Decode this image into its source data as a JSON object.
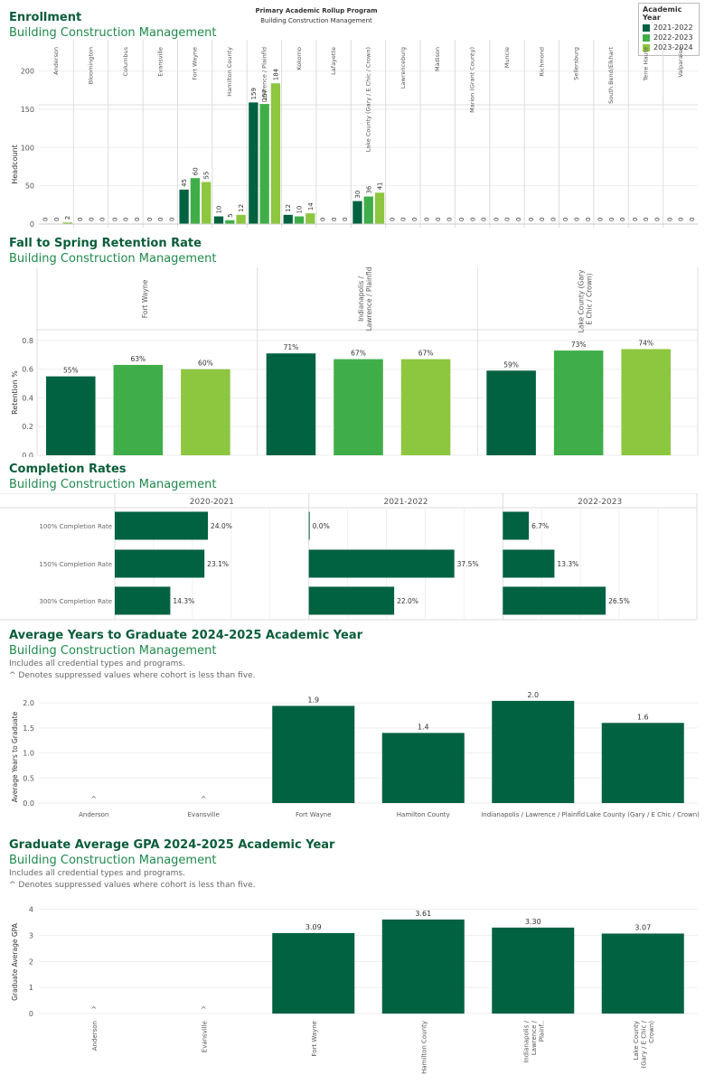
{
  "header": {
    "title": "Primary Academic Rollup Program",
    "subtitle": "Building Construction Management"
  },
  "legend": {
    "title": "Academic Year",
    "items": [
      {
        "label": "2021-2022",
        "color": "#006241"
      },
      {
        "label": "2022-2023",
        "color": "#3fae49"
      },
      {
        "label": "2023-2024",
        "color": "#8dc63f"
      }
    ]
  },
  "colors": {
    "c1": "#006241",
    "c2": "#3fae49",
    "c3": "#8dc63f",
    "dark": "#006241"
  },
  "enrollment": {
    "title": "Enrollment",
    "subtitle": "Building Construction Management",
    "chart_data": {
      "type": "bar",
      "ylabel": "Headcount",
      "ylim": [
        0,
        215
      ],
      "yticks": [
        0,
        50,
        100,
        150,
        200
      ],
      "categories": [
        "Anderson",
        "Bloomington",
        "Columbus",
        "Evansville",
        "Fort Wayne",
        "Hamilton County",
        "Indianapolis / Lawrence / Plainfld",
        "Kokomo",
        "Lafayette",
        "Lake County (Gary / E Chic / Crown)",
        "Lawrenceburg",
        "Madison",
        "Marion (Grant County)",
        "Muncie",
        "Richmond",
        "Sellersburg",
        "South Bend/Elkhart",
        "Terre Haute",
        "Valparaiso"
      ],
      "series": [
        {
          "name": "2021-2022",
          "values": [
            0,
            0,
            0,
            0,
            45,
            10,
            159,
            12,
            0,
            30,
            0,
            0,
            0,
            0,
            0,
            0,
            0,
            0,
            0
          ]
        },
        {
          "name": "2022-2023",
          "values": [
            0,
            0,
            0,
            0,
            60,
            5,
            157,
            10,
            0,
            36,
            0,
            0,
            0,
            0,
            0,
            0,
            0,
            0,
            0
          ]
        },
        {
          "name": "2023-2024",
          "values": [
            2,
            0,
            0,
            0,
            55,
            12,
            184,
            14,
            0,
            41,
            0,
            0,
            0,
            0,
            0,
            0,
            0,
            0,
            0
          ]
        }
      ]
    }
  },
  "retention": {
    "title": "Fall to Spring Retention Rate",
    "subtitle": "Building Construction Management",
    "chart_data": {
      "type": "bar",
      "ylabel": "Retention %",
      "ylim": [
        0,
        0.85
      ],
      "yticks": [
        0.0,
        0.2,
        0.4,
        0.6,
        0.8
      ],
      "categories": [
        "Fort Wayne",
        "Indianapolis / Lawrence / Plainfld",
        "Lake County (Gary / E Chic / Crown)"
      ],
      "series": [
        {
          "name": "2021-2022",
          "values": [
            0.55,
            0.71,
            0.59
          ],
          "labels": [
            "55%",
            "71%",
            "59%"
          ]
        },
        {
          "name": "2022-2023",
          "values": [
            0.63,
            0.67,
            0.73
          ],
          "labels": [
            "63%",
            "67%",
            "73%"
          ]
        },
        {
          "name": "2023-2024",
          "values": [
            0.6,
            0.67,
            0.74
          ],
          "labels": [
            "60%",
            "67%",
            "74%"
          ]
        }
      ]
    }
  },
  "completion": {
    "title": "Completion Rates",
    "subtitle": "Building Construction Management",
    "chart_data": {
      "type": "bar",
      "orientation": "horizontal",
      "xlim": [
        0,
        50
      ],
      "panels": [
        "2020-2021",
        "2021-2022",
        "2022-2023"
      ],
      "rows": [
        "100% Completion Rate",
        "150% Completion Rate",
        "300% Completion Rate"
      ],
      "values": [
        [
          24.0,
          23.1,
          14.3
        ],
        [
          0.0,
          37.5,
          22.0
        ],
        [
          6.7,
          13.3,
          26.5
        ]
      ],
      "labels": [
        [
          "24.0%",
          "23.1%",
          "14.3%"
        ],
        [
          "0.0%",
          "37.5%",
          "22.0%"
        ],
        [
          "6.7%",
          "13.3%",
          "26.5%"
        ]
      ]
    }
  },
  "years": {
    "title": "Average Years to Graduate 2024-2025 Academic Year",
    "subtitle": "Building Construction Management",
    "note1": "Includes all credential types and programs.",
    "note2": "^ Denotes suppressed values where cohort is less than five.",
    "chart_data": {
      "type": "bar",
      "ylabel": "Average Years to Graduate",
      "ylim": [
        0,
        2.2
      ],
      "yticks": [
        "0.0",
        "0.5",
        "1.0",
        "1.5",
        "2.0"
      ],
      "categories": [
        "Anderson",
        "Evansville",
        "Fort Wayne",
        "Hamilton County",
        "Indianapolis / Lawrence / Plainfld",
        "Lake County (Gary / E Chic / Crown)"
      ],
      "values": [
        null,
        null,
        1.94,
        1.4,
        2.04,
        1.6
      ],
      "labels": [
        "^",
        "^",
        "1.9",
        "1.4",
        "2.0",
        "1.6"
      ]
    }
  },
  "gpa": {
    "title": "Graduate Average GPA 2024-2025 Academic Year",
    "subtitle": "Building Construction Management",
    "note1": "Includes all credential types and programs.",
    "note2": "^ Denotes suppressed values where cohort is less than five.",
    "chart_data": {
      "type": "bar",
      "ylabel": "Graduate Average GPA",
      "ylim": [
        0,
        4.3
      ],
      "yticks": [
        0,
        1,
        2,
        3,
        4
      ],
      "categories": [
        "Anderson",
        "Evansville",
        "Fort Wayne",
        "Hamilton County",
        "Indianapolis / Lawrence / Plainf..",
        "Lake County (Gary / E Chic / Crown)"
      ],
      "values": [
        null,
        null,
        3.09,
        3.61,
        3.3,
        3.07
      ],
      "labels": [
        "^",
        "^",
        "3.09",
        "3.61",
        "3.30",
        "3.07"
      ]
    }
  }
}
